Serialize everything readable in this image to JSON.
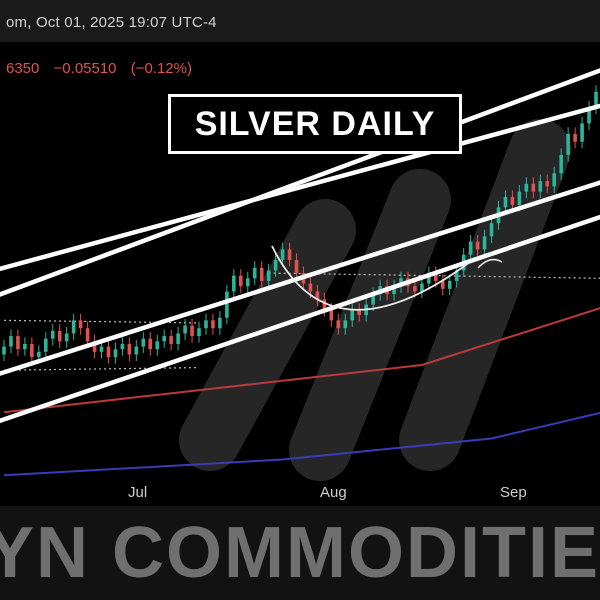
{
  "header": {
    "info_text": "om, Oct 01, 2025 19:07 UTC-4"
  },
  "price": {
    "last": "6350",
    "change": "−0.05510",
    "change_pct": "(−0.12%)",
    "down_color": "#e0524f"
  },
  "overlay": {
    "title": "SILVER DAILY",
    "watermark": "YN COMMODITIE"
  },
  "colors": {
    "up": "#2bb59a",
    "down": "#e0524f",
    "ma_short": "#b83a3a",
    "ma_long": "#3b3bb8",
    "trendline": "#ffffff"
  },
  "chart_data": {
    "type": "candlestick",
    "title": "SILVER DAILY",
    "x_labels": [
      "Jul",
      "Aug",
      "Sep"
    ],
    "y_range": [
      31.2,
      47.5
    ],
    "candles": [
      {
        "o": 35.6,
        "c": 35.9
      },
      {
        "o": 35.9,
        "c": 36.3
      },
      {
        "o": 36.3,
        "c": 35.8
      },
      {
        "o": 35.8,
        "c": 36.0
      },
      {
        "o": 36.0,
        "c": 35.5
      },
      {
        "o": 35.5,
        "c": 35.7
      },
      {
        "o": 35.7,
        "c": 36.2
      },
      {
        "o": 36.2,
        "c": 36.5
      },
      {
        "o": 36.5,
        "c": 36.1
      },
      {
        "o": 36.1,
        "c": 36.4
      },
      {
        "o": 36.4,
        "c": 36.9
      },
      {
        "o": 36.9,
        "c": 36.6
      },
      {
        "o": 36.6,
        "c": 36.1
      },
      {
        "o": 36.1,
        "c": 35.7
      },
      {
        "o": 35.7,
        "c": 35.9
      },
      {
        "o": 35.9,
        "c": 35.5
      },
      {
        "o": 35.5,
        "c": 35.8
      },
      {
        "o": 35.8,
        "c": 36.0
      },
      {
        "o": 36.0,
        "c": 35.6
      },
      {
        "o": 35.6,
        "c": 35.9
      },
      {
        "o": 35.9,
        "c": 36.2
      },
      {
        "o": 36.2,
        "c": 35.8
      },
      {
        "o": 35.8,
        "c": 36.1
      },
      {
        "o": 36.1,
        "c": 36.3
      },
      {
        "o": 36.3,
        "c": 36.0
      },
      {
        "o": 36.0,
        "c": 36.4
      },
      {
        "o": 36.4,
        "c": 36.7
      },
      {
        "o": 36.7,
        "c": 36.3
      },
      {
        "o": 36.3,
        "c": 36.6
      },
      {
        "o": 36.6,
        "c": 36.9
      },
      {
        "o": 36.9,
        "c": 36.6
      },
      {
        "o": 36.6,
        "c": 37.0
      },
      {
        "o": 37.0,
        "c": 38.0
      },
      {
        "o": 38.0,
        "c": 38.6
      },
      {
        "o": 38.6,
        "c": 38.2
      },
      {
        "o": 38.2,
        "c": 38.5
      },
      {
        "o": 38.5,
        "c": 38.9
      },
      {
        "o": 38.9,
        "c": 38.4
      },
      {
        "o": 38.4,
        "c": 38.8
      },
      {
        "o": 38.8,
        "c": 39.2
      },
      {
        "o": 39.2,
        "c": 39.6
      },
      {
        "o": 39.6,
        "c": 39.2
      },
      {
        "o": 39.2,
        "c": 38.7
      },
      {
        "o": 38.7,
        "c": 38.3
      },
      {
        "o": 38.3,
        "c": 38.0
      },
      {
        "o": 38.0,
        "c": 37.7
      },
      {
        "o": 37.7,
        "c": 37.3
      },
      {
        "o": 37.3,
        "c": 36.9
      },
      {
        "o": 36.9,
        "c": 36.6
      },
      {
        "o": 36.6,
        "c": 36.9
      },
      {
        "o": 36.9,
        "c": 37.3
      },
      {
        "o": 37.3,
        "c": 37.1
      },
      {
        "o": 37.1,
        "c": 37.5
      },
      {
        "o": 37.5,
        "c": 37.9
      },
      {
        "o": 37.9,
        "c": 38.2
      },
      {
        "o": 38.2,
        "c": 37.9
      },
      {
        "o": 37.9,
        "c": 38.2
      },
      {
        "o": 38.2,
        "c": 38.5
      },
      {
        "o": 38.5,
        "c": 38.2
      },
      {
        "o": 38.2,
        "c": 38.0
      },
      {
        "o": 38.0,
        "c": 38.3
      },
      {
        "o": 38.3,
        "c": 38.7
      },
      {
        "o": 38.7,
        "c": 38.4
      },
      {
        "o": 38.4,
        "c": 38.1
      },
      {
        "o": 38.1,
        "c": 38.4
      },
      {
        "o": 38.4,
        "c": 38.8
      },
      {
        "o": 38.8,
        "c": 39.4
      },
      {
        "o": 39.4,
        "c": 39.9
      },
      {
        "o": 39.9,
        "c": 39.6
      },
      {
        "o": 39.6,
        "c": 40.1
      },
      {
        "o": 40.1,
        "c": 40.6
      },
      {
        "o": 40.6,
        "c": 41.2
      },
      {
        "o": 41.2,
        "c": 41.6
      },
      {
        "o": 41.6,
        "c": 41.3
      },
      {
        "o": 41.3,
        "c": 41.8
      },
      {
        "o": 41.8,
        "c": 42.1
      },
      {
        "o": 42.1,
        "c": 41.8
      },
      {
        "o": 41.8,
        "c": 42.2
      },
      {
        "o": 42.2,
        "c": 42.0
      },
      {
        "o": 42.0,
        "c": 42.5
      },
      {
        "o": 42.5,
        "c": 43.2
      },
      {
        "o": 43.2,
        "c": 44.0
      },
      {
        "o": 44.0,
        "c": 43.7
      },
      {
        "o": 43.7,
        "c": 44.4
      },
      {
        "o": 44.4,
        "c": 45.0
      },
      {
        "o": 45.0,
        "c": 45.6
      }
    ],
    "ma_short": [
      [
        0,
        33.4
      ],
      [
        30,
        34.3
      ],
      [
        60,
        35.2
      ],
      [
        86,
        37.4
      ]
    ],
    "ma_long": [
      [
        0,
        31.0
      ],
      [
        40,
        31.6
      ],
      [
        70,
        32.4
      ],
      [
        86,
        33.4
      ]
    ],
    "trendlines": [
      {
        "from": [
          0,
          37.8
        ],
        "to": [
          86,
          46.6
        ]
      },
      {
        "from": [
          0,
          38.8
        ],
        "to": [
          86,
          45.2
        ]
      },
      {
        "from": [
          0,
          34.8
        ],
        "to": [
          86,
          42.3
        ]
      },
      {
        "from": [
          0,
          33.0
        ],
        "to": [
          86,
          41.0
        ]
      }
    ],
    "dotted_levels": [
      {
        "from": [
          0,
          36.9
        ],
        "to": [
          28,
          36.8
        ]
      },
      {
        "from": [
          0,
          35.0
        ],
        "to": [
          28,
          35.1
        ]
      },
      {
        "from": [
          38,
          38.7
        ],
        "to": [
          86,
          38.5
        ]
      }
    ]
  }
}
